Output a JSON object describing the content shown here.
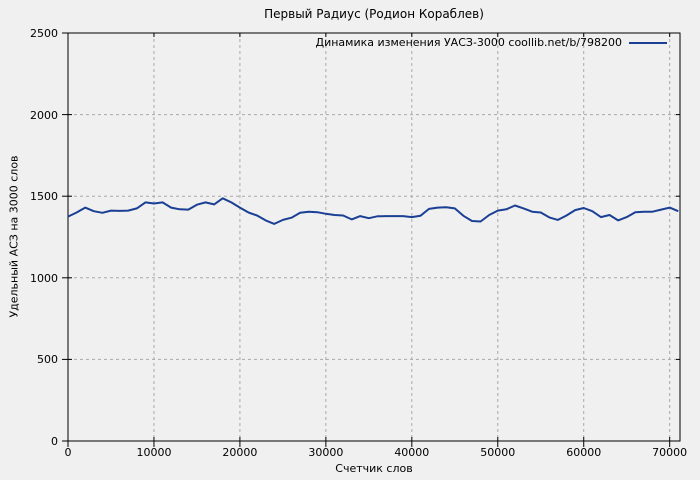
{
  "title": "Первый Радиус (Родион Кораблев)",
  "legend": {
    "label": "Динамика изменения УАСЗ-3000 coollib.net/b/798200"
  },
  "colors": {
    "background": "#f0f0f0",
    "line": "#1a3f94",
    "grid": "#a9a9a9",
    "border": "#000000",
    "text": "#000000"
  },
  "chart_data": {
    "type": "line",
    "title": "Первый Радиус (Родион Кораблев)",
    "xlabel": "Счетчик слов",
    "ylabel": "Удельный АСЗ на 3000 слов",
    "xlim": [
      0,
      71200
    ],
    "ylim": [
      0,
      2500
    ],
    "xticks": [
      0,
      10000,
      20000,
      30000,
      40000,
      50000,
      60000,
      70000
    ],
    "yticks": [
      0,
      500,
      1000,
      1500,
      2000,
      2500
    ],
    "grid": true,
    "legend_position": "top-right",
    "series": [
      {
        "name": "Динамика изменения УАСЗ-3000 coollib.net/b/798200",
        "color": "#1a3f94",
        "x": [
          0,
          1000,
          2000,
          3000,
          4000,
          5000,
          6000,
          7000,
          8000,
          9000,
          10000,
          11000,
          12000,
          13000,
          14000,
          15000,
          16000,
          17000,
          18000,
          19000,
          20000,
          21000,
          22000,
          23000,
          24000,
          25000,
          26000,
          27000,
          28000,
          29000,
          30000,
          31000,
          32000,
          33000,
          34000,
          35000,
          36000,
          37000,
          38000,
          39000,
          40000,
          41000,
          42000,
          43000,
          44000,
          45000,
          46000,
          47000,
          48000,
          49000,
          50000,
          51000,
          52000,
          53000,
          54000,
          55000,
          56000,
          57000,
          58000,
          59000,
          60000,
          61000,
          62000,
          63000,
          64000,
          65000,
          66000,
          67000,
          68000,
          69000,
          70000,
          71000
        ],
        "values": [
          1375,
          1400,
          1430,
          1408,
          1398,
          1412,
          1410,
          1412,
          1425,
          1462,
          1455,
          1462,
          1430,
          1420,
          1418,
          1448,
          1462,
          1450,
          1487,
          1462,
          1430,
          1400,
          1382,
          1352,
          1330,
          1355,
          1368,
          1398,
          1405,
          1402,
          1392,
          1385,
          1382,
          1358,
          1378,
          1365,
          1377,
          1378,
          1378,
          1378,
          1372,
          1380,
          1422,
          1430,
          1432,
          1425,
          1380,
          1348,
          1345,
          1385,
          1412,
          1420,
          1443,
          1425,
          1405,
          1400,
          1370,
          1355,
          1382,
          1415,
          1428,
          1408,
          1372,
          1385,
          1352,
          1372,
          1402,
          1405,
          1405,
          1418,
          1430,
          1408
        ]
      }
    ]
  }
}
